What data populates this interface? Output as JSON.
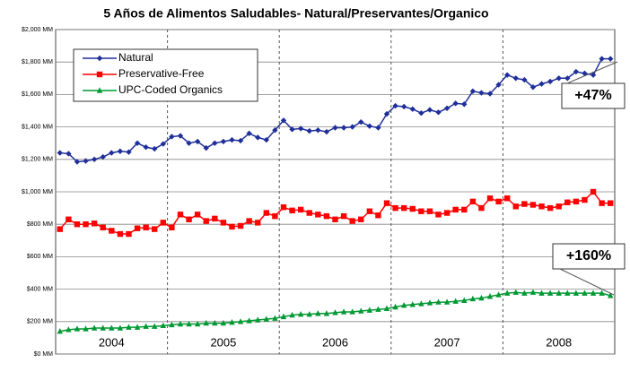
{
  "chart_data": {
    "type": "line",
    "title": "5 Años de Alimentos Saludables- Natural/Preservantes/Organico",
    "year_labels": [
      "2004",
      "2005",
      "2006",
      "2007",
      "2008"
    ],
    "series": [
      {
        "name": "Natural",
        "color": "#1f2f9a",
        "marker": "diamond",
        "values": [
          1240,
          1235,
          1185,
          1190,
          1200,
          1215,
          1240,
          1250,
          1245,
          1300,
          1275,
          1265,
          1295,
          1340,
          1345,
          1300,
          1310,
          1270,
          1300,
          1310,
          1320,
          1315,
          1360,
          1335,
          1320,
          1380,
          1440,
          1385,
          1390,
          1375,
          1380,
          1370,
          1395,
          1395,
          1400,
          1430,
          1405,
          1395,
          1480,
          1530,
          1525,
          1510,
          1485,
          1505,
          1490,
          1515,
          1545,
          1540,
          1620,
          1610,
          1605,
          1660,
          1720,
          1700,
          1690,
          1645,
          1665,
          1680,
          1700,
          1700,
          1740,
          1730,
          1720,
          1820,
          1820
        ]
      },
      {
        "name": "Preservative-Free",
        "color": "#ff0000",
        "marker": "square",
        "values": [
          770,
          830,
          800,
          800,
          805,
          780,
          760,
          740,
          740,
          775,
          780,
          770,
          810,
          780,
          860,
          830,
          860,
          820,
          835,
          810,
          785,
          790,
          820,
          810,
          870,
          850,
          905,
          885,
          890,
          870,
          860,
          850,
          830,
          850,
          820,
          830,
          880,
          855,
          930,
          900,
          900,
          895,
          880,
          880,
          860,
          870,
          890,
          890,
          940,
          900,
          960,
          940,
          960,
          910,
          925,
          920,
          910,
          900,
          910,
          935,
          940,
          950,
          1000,
          930,
          930
        ]
      },
      {
        "name": "UPC-Coded Organics",
        "color": "#009933",
        "marker": "triangle",
        "values": [
          140,
          150,
          155,
          155,
          160,
          160,
          160,
          160,
          165,
          165,
          170,
          170,
          175,
          180,
          185,
          185,
          185,
          190,
          190,
          190,
          195,
          200,
          205,
          210,
          215,
          220,
          230,
          240,
          245,
          245,
          250,
          250,
          255,
          260,
          260,
          265,
          270,
          275,
          280,
          290,
          300,
          305,
          310,
          315,
          320,
          320,
          325,
          330,
          340,
          345,
          355,
          365,
          375,
          380,
          375,
          380,
          375,
          375,
          375,
          375,
          375,
          375,
          375,
          375,
          360
        ]
      }
    ],
    "ylim": [
      0,
      2000
    ],
    "yticks": [
      {
        "value": 0,
        "label": "$0 MM"
      },
      {
        "value": 200,
        "label": "$200 MM"
      },
      {
        "value": 400,
        "label": "$400 MM"
      },
      {
        "value": 600,
        "label": "$600 MM"
      },
      {
        "value": 800,
        "label": "$800 MM"
      },
      {
        "value": 1000,
        "label": "$1,000 MM"
      },
      {
        "value": 1200,
        "label": "$1,200 MM"
      },
      {
        "value": 1400,
        "label": "$1,400 MM"
      },
      {
        "value": 1600,
        "label": "$1,600 MM"
      },
      {
        "value": 1800,
        "label": "$1,800 MM"
      },
      {
        "value": 2000,
        "label": "$2,000 MM"
      }
    ],
    "grid": true,
    "legend": "upper left",
    "annotations": [
      "+47%",
      "+160%"
    ]
  }
}
